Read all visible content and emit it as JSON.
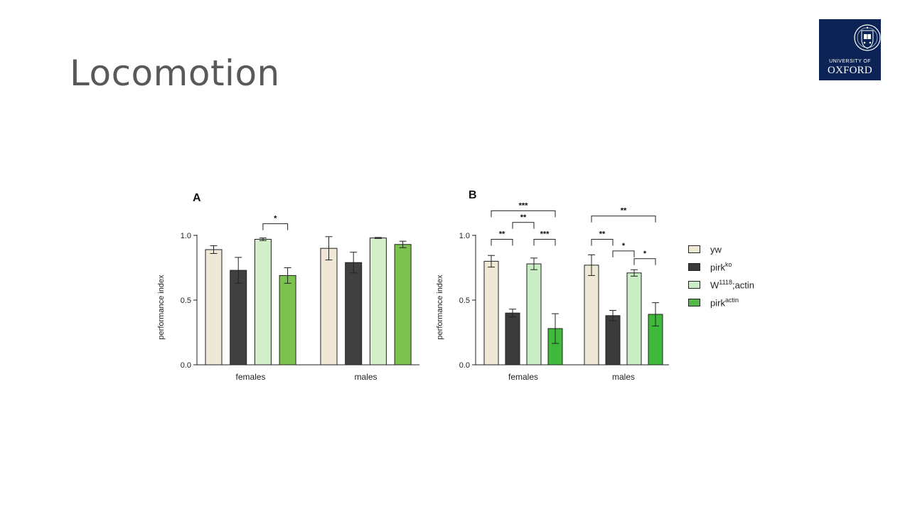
{
  "slide": {
    "title": "Locomotion"
  },
  "logo": {
    "line1": "UNIVERSITY OF",
    "line2": "OXFORD"
  },
  "legend": [
    {
      "base": "yw",
      "sup": "",
      "color": "#eee8d5"
    },
    {
      "base": "pirk",
      "sup": "ko",
      "color": "#3b3b3b"
    },
    {
      "base": "W",
      "sup": "1118",
      "rest": ";actin",
      "color": "#c9edc4"
    },
    {
      "base": "pirk",
      "sup": "actin",
      "color": "#56b84a"
    }
  ],
  "chart_data": [
    {
      "type": "bar",
      "panel_label": "A",
      "ylabel": "performance index",
      "ylim": [
        0,
        1
      ],
      "yticks": [
        "0.0",
        "0.5",
        "1.0"
      ],
      "categories": [
        "females",
        "males"
      ],
      "series": [
        {
          "name": "yw",
          "values": [
            0.89,
            0.9
          ],
          "errors": [
            0.03,
            0.09
          ],
          "color": "#efe8d6"
        },
        {
          "name": "pirkko",
          "values": [
            0.73,
            0.79
          ],
          "errors": [
            0.1,
            0.08
          ],
          "color": "#404040"
        },
        {
          "name": "W1118;actin",
          "values": [
            0.97,
            0.98
          ],
          "errors": [
            0.01,
            0.004
          ],
          "color": "#d2efca"
        },
        {
          "name": "pirkactin",
          "values": [
            0.69,
            0.93
          ],
          "errors": [
            0.06,
            0.025
          ],
          "color": "#7cc24f"
        }
      ],
      "significance": [
        {
          "group": 0,
          "from": 2,
          "to": 3,
          "label": "*",
          "level": 1.09
        }
      ]
    },
    {
      "type": "bar",
      "panel_label": "B",
      "ylabel": "performance index",
      "ylim": [
        0,
        1
      ],
      "yticks": [
        "0.0",
        "0.5",
        "1.0"
      ],
      "categories": [
        "females",
        "males"
      ],
      "series": [
        {
          "name": "yw",
          "values": [
            0.8,
            0.77
          ],
          "errors": [
            0.045,
            0.08
          ],
          "color": "#efe8d6"
        },
        {
          "name": "pirkko",
          "values": [
            0.4,
            0.38
          ],
          "errors": [
            0.03,
            0.04
          ],
          "color": "#3b3b3b"
        },
        {
          "name": "W1118;actin",
          "values": [
            0.78,
            0.71
          ],
          "errors": [
            0.045,
            0.025
          ],
          "color": "#c9edc4"
        },
        {
          "name": "pirkactin",
          "values": [
            0.28,
            0.39
          ],
          "errors": [
            0.115,
            0.09
          ],
          "color": "#3eb93b"
        }
      ],
      "significance": [
        {
          "group": 0,
          "from": 0,
          "to": 1,
          "label": "**",
          "level": 0.97
        },
        {
          "group": 0,
          "from": 2,
          "to": 3,
          "label": "***",
          "level": 0.97
        },
        {
          "group": 0,
          "from": 1,
          "to": 2,
          "label": "**",
          "level": 1.1
        },
        {
          "group": 0,
          "from": 0,
          "to": 3,
          "label": "***",
          "level": 1.19
        },
        {
          "group": 1,
          "from": 0,
          "to": 1,
          "label": "**",
          "level": 0.97
        },
        {
          "group": 1,
          "from": 1,
          "to": 2,
          "label": "*",
          "level": 0.88
        },
        {
          "group": 1,
          "from": 2,
          "to": 3,
          "label": "*",
          "level": 0.82
        },
        {
          "group": 1,
          "from": 0,
          "to": 3,
          "label": "**",
          "level": 1.15
        }
      ]
    }
  ]
}
